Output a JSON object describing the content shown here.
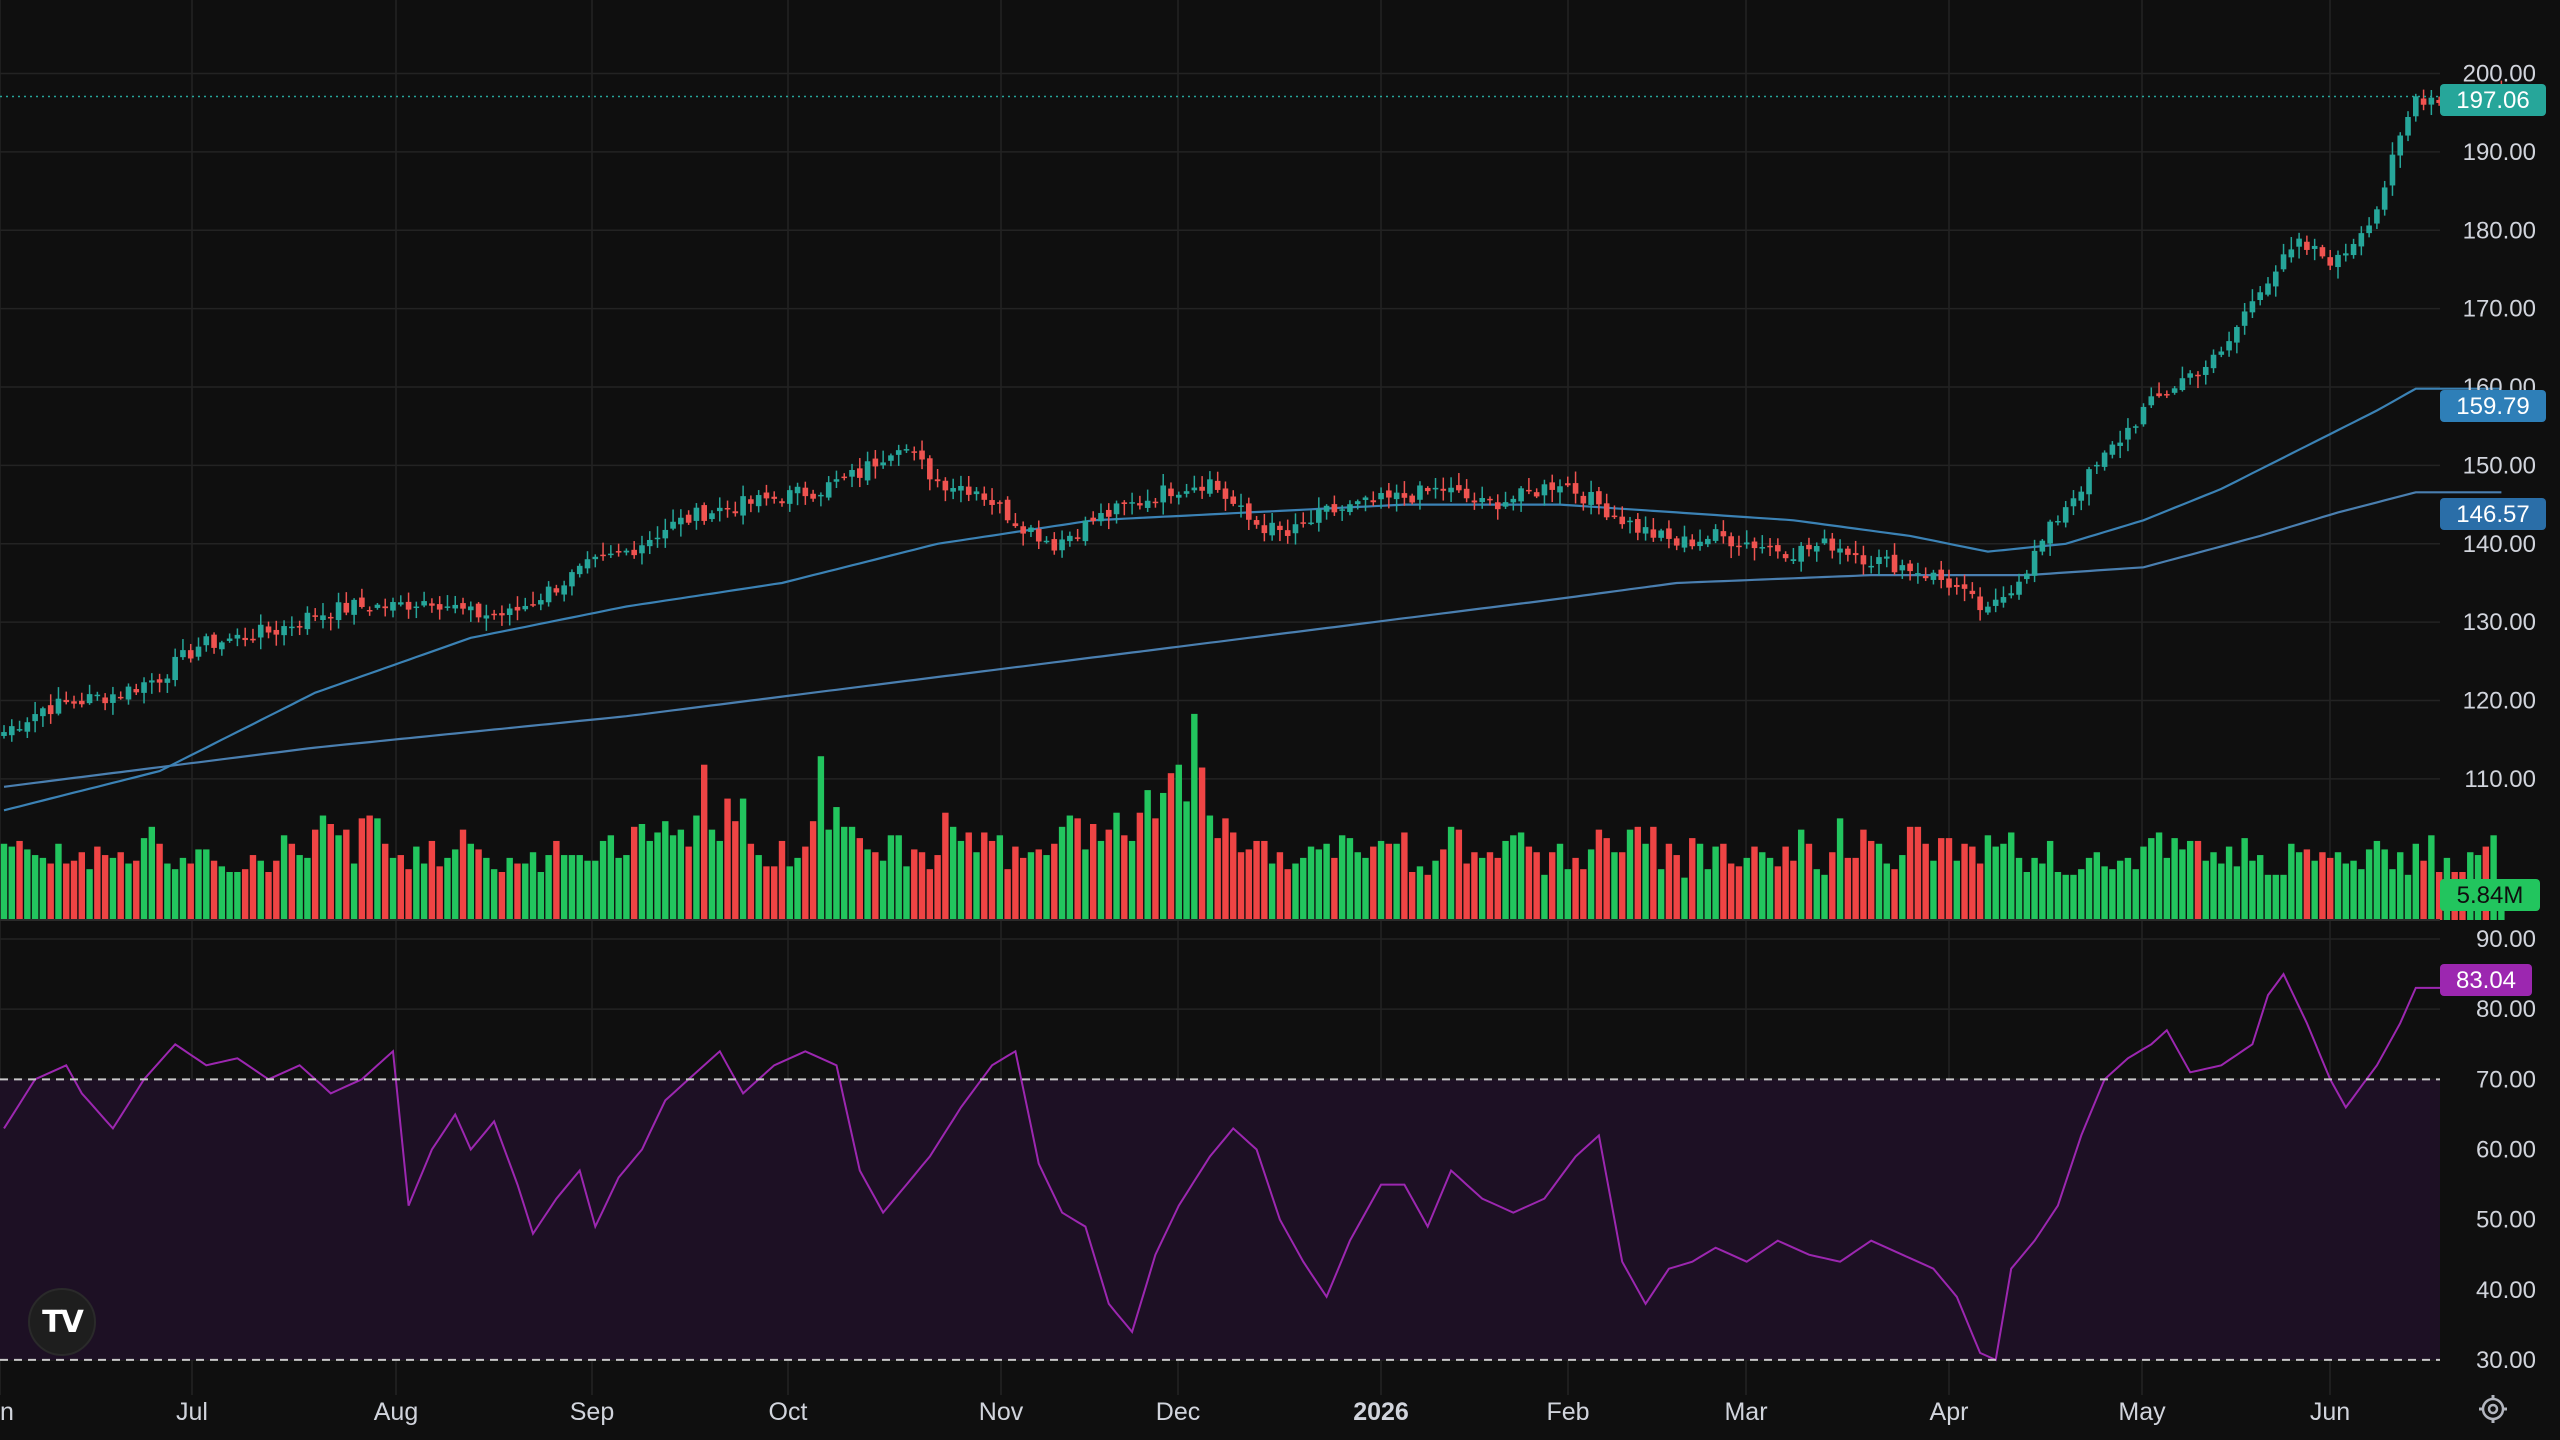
{
  "colors": {
    "background": "#0f0f0f",
    "grid": "#232323",
    "up": "#26a69a",
    "down": "#ef5350",
    "vol_up": "#22c55e",
    "vol_down": "#ef4444",
    "ma50": "#3b82b5",
    "ma200": "#4a7fb0",
    "rsi": "#9c27b0",
    "rsi_band": "#1d1024",
    "price_label": "#26a69a",
    "ma50_label": "#2e7fb8",
    "ma200_label": "#2a6ea8",
    "vol_label": "#22c55e",
    "rsi_label": "#9c27b0"
  },
  "icons": {
    "logo": "tradingview-logo",
    "settings": "gear-icon"
  },
  "chart_data": {
    "type": "candlestick",
    "x_labels": [
      "un",
      "Jul",
      "Aug",
      "Sep",
      "Oct",
      "Nov",
      "Dec",
      "2026",
      "Feb",
      "Mar",
      "Apr",
      "May",
      "Jun"
    ],
    "price_axis": {
      "range": [
        92,
        203
      ],
      "ticks": [
        "200.00",
        "190.00",
        "180.00",
        "170.00",
        "160.00",
        "150.00",
        "140.00",
        "130.00",
        "120.00",
        "110.00"
      ]
    },
    "rsi_axis": {
      "range": [
        25,
        92
      ],
      "ticks": [
        "90.00",
        "80.00",
        "70.00",
        "60.00",
        "50.00",
        "40.00",
        "30.00"
      ],
      "overbought": 70,
      "oversold": 30
    },
    "labels": {
      "last_price": "197.06",
      "ma_fast": "159.79",
      "ma_slow": "146.57",
      "volume": "5.84M",
      "rsi": "83.04"
    },
    "price_anchors": [
      [
        0,
        116
      ],
      [
        5,
        119
      ],
      [
        10,
        120
      ],
      [
        15,
        121
      ],
      [
        20,
        123
      ],
      [
        25,
        127
      ],
      [
        30,
        128
      ],
      [
        35,
        129
      ],
      [
        40,
        131
      ],
      [
        45,
        132
      ],
      [
        50,
        132
      ],
      [
        55,
        133
      ],
      [
        60,
        131
      ],
      [
        65,
        131
      ],
      [
        70,
        134
      ],
      [
        75,
        137
      ],
      [
        80,
        139
      ],
      [
        85,
        142
      ],
      [
        90,
        144
      ],
      [
        95,
        145
      ],
      [
        100,
        146
      ],
      [
        105,
        147
      ],
      [
        110,
        149
      ],
      [
        115,
        153
      ],
      [
        120,
        148
      ],
      [
        125,
        147
      ],
      [
        130,
        143
      ],
      [
        135,
        140
      ],
      [
        140,
        143
      ],
      [
        145,
        145
      ],
      [
        150,
        147
      ],
      [
        155,
        148
      ],
      [
        160,
        143
      ],
      [
        165,
        141
      ],
      [
        170,
        144
      ],
      [
        175,
        145
      ],
      [
        180,
        146
      ],
      [
        185,
        147
      ],
      [
        190,
        145
      ],
      [
        195,
        146
      ],
      [
        200,
        148
      ],
      [
        205,
        145
      ],
      [
        210,
        142
      ],
      [
        215,
        140
      ],
      [
        220,
        141
      ],
      [
        225,
        140
      ],
      [
        230,
        139
      ],
      [
        235,
        140
      ],
      [
        240,
        138
      ],
      [
        245,
        137
      ],
      [
        250,
        135
      ],
      [
        255,
        131
      ],
      [
        260,
        137
      ],
      [
        265,
        145
      ],
      [
        270,
        151
      ],
      [
        275,
        157
      ],
      [
        280,
        161
      ],
      [
        285,
        164
      ],
      [
        290,
        173
      ],
      [
        295,
        178
      ],
      [
        300,
        176
      ],
      [
        305,
        183
      ],
      [
        310,
        197
      ]
    ],
    "ma_fast_anchors": [
      [
        0,
        106
      ],
      [
        20,
        111
      ],
      [
        40,
        121
      ],
      [
        60,
        128
      ],
      [
        80,
        132
      ],
      [
        100,
        135
      ],
      [
        120,
        140
      ],
      [
        140,
        143
      ],
      [
        160,
        144
      ],
      [
        180,
        145
      ],
      [
        200,
        145
      ],
      [
        215,
        144
      ],
      [
        230,
        143
      ],
      [
        245,
        141
      ],
      [
        255,
        139
      ],
      [
        265,
        140
      ],
      [
        275,
        143
      ],
      [
        285,
        147
      ],
      [
        295,
        152
      ],
      [
        305,
        157
      ],
      [
        310,
        159.79
      ]
    ],
    "ma_slow_anchors": [
      [
        0,
        109
      ],
      [
        40,
        114
      ],
      [
        80,
        118
      ],
      [
        120,
        123
      ],
      [
        160,
        128
      ],
      [
        200,
        133
      ],
      [
        215,
        135
      ],
      [
        240,
        136
      ],
      [
        260,
        136
      ],
      [
        275,
        137
      ],
      [
        290,
        141
      ],
      [
        300,
        144
      ],
      [
        310,
        146.57
      ]
    ],
    "rsi_anchors": [
      [
        0,
        63
      ],
      [
        4,
        70
      ],
      [
        8,
        72
      ],
      [
        10,
        68
      ],
      [
        14,
        63
      ],
      [
        18,
        70
      ],
      [
        22,
        75
      ],
      [
        26,
        72
      ],
      [
        30,
        73
      ],
      [
        34,
        70
      ],
      [
        38,
        72
      ],
      [
        42,
        68
      ],
      [
        46,
        70
      ],
      [
        50,
        74
      ],
      [
        52,
        52
      ],
      [
        55,
        60
      ],
      [
        58,
        65
      ],
      [
        60,
        60
      ],
      [
        63,
        64
      ],
      [
        66,
        55
      ],
      [
        68,
        48
      ],
      [
        71,
        53
      ],
      [
        74,
        57
      ],
      [
        76,
        49
      ],
      [
        79,
        56
      ],
      [
        82,
        60
      ],
      [
        85,
        67
      ],
      [
        88,
        70
      ],
      [
        92,
        74
      ],
      [
        95,
        68
      ],
      [
        99,
        72
      ],
      [
        103,
        74
      ],
      [
        107,
        72
      ],
      [
        110,
        57
      ],
      [
        113,
        51
      ],
      [
        116,
        55
      ],
      [
        119,
        59
      ],
      [
        123,
        66
      ],
      [
        127,
        72
      ],
      [
        130,
        74
      ],
      [
        133,
        58
      ],
      [
        136,
        51
      ],
      [
        139,
        49
      ],
      [
        142,
        38
      ],
      [
        145,
        34
      ],
      [
        148,
        45
      ],
      [
        151,
        52
      ],
      [
        155,
        59
      ],
      [
        158,
        63
      ],
      [
        161,
        60
      ],
      [
        164,
        50
      ],
      [
        167,
        44
      ],
      [
        170,
        39
      ],
      [
        173,
        47
      ],
      [
        177,
        55
      ],
      [
        180,
        55
      ],
      [
        183,
        49
      ],
      [
        186,
        57
      ],
      [
        190,
        53
      ],
      [
        194,
        51
      ],
      [
        198,
        53
      ],
      [
        202,
        59
      ],
      [
        205,
        62
      ],
      [
        208,
        44
      ],
      [
        211,
        38
      ],
      [
        214,
        43
      ],
      [
        217,
        44
      ],
      [
        220,
        46
      ],
      [
        224,
        44
      ],
      [
        228,
        47
      ],
      [
        232,
        45
      ],
      [
        236,
        44
      ],
      [
        240,
        47
      ],
      [
        244,
        45
      ],
      [
        248,
        43
      ],
      [
        251,
        39
      ],
      [
        254,
        31
      ],
      [
        256,
        30
      ],
      [
        258,
        43
      ],
      [
        261,
        47
      ],
      [
        264,
        52
      ],
      [
        267,
        62
      ],
      [
        270,
        70
      ],
      [
        273,
        73
      ],
      [
        276,
        75
      ],
      [
        278,
        77
      ],
      [
        281,
        71
      ],
      [
        285,
        72
      ],
      [
        289,
        75
      ],
      [
        291,
        82
      ],
      [
        293,
        85
      ],
      [
        296,
        78
      ],
      [
        299,
        70
      ],
      [
        301,
        66
      ],
      [
        305,
        72
      ],
      [
        308,
        78
      ],
      [
        310,
        83.04
      ]
    ],
    "volume": {
      "range": [
        0,
        8.5
      ],
      "values": [
        2.7,
        2.6,
        2.8,
        2.5,
        2.3,
        2.2,
        2.0,
        2.7,
        2.0,
        2.1,
        2.4,
        1.8,
        2.6,
        2.3,
        2.2,
        2.4,
        2.0,
        2.1,
        2.9,
        3.3,
        2.7,
        2.0,
        1.8,
        2.2,
        2.0,
        2.5,
        2.5,
        2.1,
        1.9,
        1.7,
        1.7,
        1.8,
        2.3,
        2.1,
        1.7,
        2.1,
        3.0,
        2.7,
        2.3,
        2.2,
        3.2,
        3.7,
        3.4,
        3.0,
        3.2,
        2.0,
        3.6,
        3.7,
        3.6,
        2.7,
        2.2,
        2.3,
        1.8,
        2.6,
        2.0,
        2.8,
        1.9,
        2.2,
        2.5,
        3.2,
        2.7,
        2.5,
        2.2,
        1.8,
        1.7,
        2.2,
        2.0,
        2.0,
        2.4,
        1.7,
        2.3,
        2.8,
        2.3,
        2.3,
        2.3,
        2.1,
        2.1,
        2.8,
        3.0,
        2.2,
        2.3,
        3.3,
        3.4,
        2.8,
        3.1,
        3.5,
        3.0,
        3.2,
        2.6,
        3.7,
        5.5,
        3.2,
        2.8,
        4.3,
        3.5,
        4.3,
        2.7,
        2.3,
        1.9,
        1.9,
        2.8,
        1.9,
        2.2,
        2.6,
        3.5,
        5.8,
        3.2,
        4.0,
        3.3,
        3.3,
        2.9,
        2.5,
        2.4,
        2.1,
        3.0,
        3.0,
        1.9,
        2.5,
        2.4,
        1.8,
        2.3,
        3.8,
        3.3,
        2.8,
        3.1,
        2.4,
        3.1,
        2.8,
        3.0,
        1.8,
        2.6,
        2.2,
        2.4,
        2.5,
        2.3,
        2.7,
        3.3,
        3.7,
        3.6,
        2.5,
        3.4,
        2.8,
        3.2,
        3.8,
        3.0,
        2.8,
        3.8,
        4.6,
        3.6,
        4.5,
        5.2,
        5.5,
        4.2,
        7.3,
        5.4,
        3.7,
        2.9,
        3.6,
        3.1,
        2.4,
        2.5,
        2.8,
        2.8,
        2.0,
        2.4,
        1.8,
        2.0,
        2.2,
        2.6,
        2.5,
        2.7,
        2.2,
        3.0,
        2.9,
        2.4,
        2.2,
        2.6,
        2.8,
        2.7,
        2.7,
        3.1,
        1.7,
        1.9,
        1.6,
        2.1,
        2.5,
        3.3,
        3.2,
        2.0,
        2.4,
        2.2,
        2.4,
        2.2,
        2.8,
        3.0,
        3.1,
        2.6,
        2.4,
        1.6,
        2.4,
        2.7,
        1.8,
        2.2,
        1.8,
        2.5,
        3.2,
        2.9,
        2.4,
        2.4,
        3.2,
        3.3,
        2.7,
        3.3,
        1.8,
        2.7,
        2.3,
        1.5,
        2.9,
        2.7,
        1.8,
        2.6,
        2.7,
        2.0,
        1.9,
        2.2,
        2.6,
        2.4,
        2.2,
        1.9,
        2.6,
        2.1,
        3.2,
        2.7,
        1.8,
        1.6,
        2.4,
        3.6,
        2.2,
        2.2,
        3.2,
        2.8,
        2.7,
        2.0,
        1.8,
        2.3,
        3.3,
        3.3,
        2.7,
        2.1,
        2.9,
        2.9,
        2.1,
        2.7,
        2.6,
        2.0,
        3.0,
        2.6,
        2.7,
        3.1,
        2.2,
        1.7,
        2.2,
        2.0,
        2.8,
        1.7,
        1.6,
        1.6,
        1.8,
        2.2,
        2.4,
        1.9,
        1.8,
        2.1,
        2.2,
        1.8,
        2.6,
        2.9,
        3.1,
        2.2,
        2.9,
        2.5,
        2.8,
        2.8,
        2.1,
        2.4,
        2.0,
        2.6,
        1.9,
        2.9,
        2.1,
        2.3,
        1.6,
        1.6,
        1.6,
        2.7,
        2.4,
        2.5,
        2.1,
        2.4,
        2.2,
        2.4,
        2.0,
        2.1,
        1.8,
        2.5,
        2.8,
        2.5,
        1.8,
        2.4,
        1.6,
        2.7,
        2.1,
        3.0,
        1.7,
        2.2,
        1.7,
        1.7,
        2.4,
        2.3,
        2.6,
        3.0,
        0.6
      ]
    }
  }
}
